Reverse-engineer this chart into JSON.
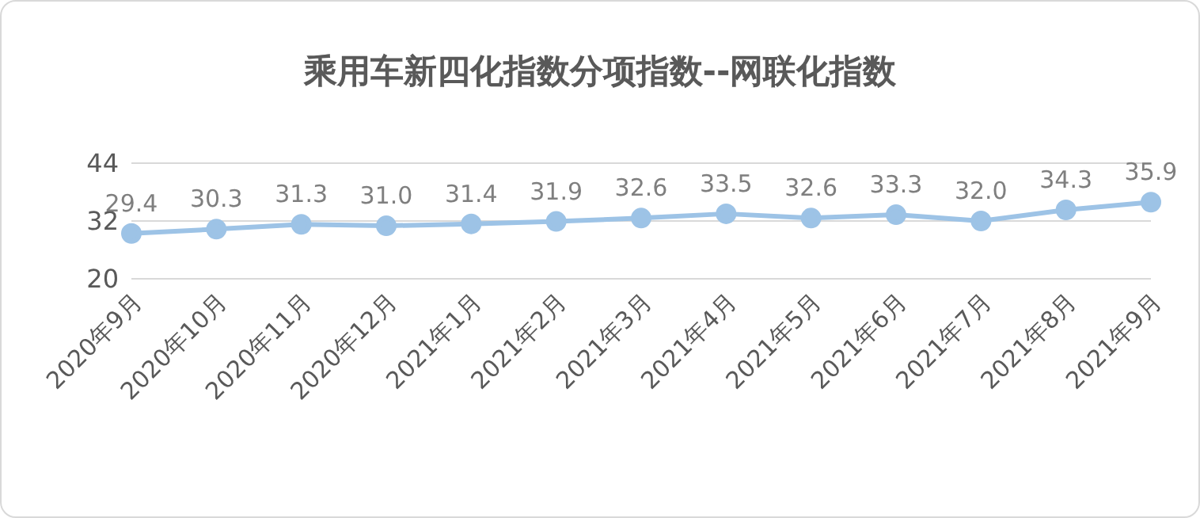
{
  "chart_data": {
    "type": "line",
    "title": "乘用车新四化指数分项指数--网联化指数",
    "categories": [
      "2020年9月",
      "2020年10月",
      "2020年11月",
      "2020年12月",
      "2021年1月",
      "2021年2月",
      "2021年3月",
      "2021年4月",
      "2021年5月",
      "2021年6月",
      "2021年7月",
      "2021年8月",
      "2021年9月"
    ],
    "series": [
      {
        "color": "#9dc3e6",
        "values": [
          29.4,
          30.3,
          31.3,
          31.0,
          31.4,
          31.9,
          32.6,
          33.5,
          32.6,
          33.3,
          32.0,
          34.3,
          35.9
        ],
        "value_labels": [
          "29.4",
          "30.3",
          "31.3",
          "31.0",
          "31.4",
          "31.9",
          "32.6",
          "33.5",
          "32.6",
          "33.3",
          "32.0",
          "34.3",
          "35.9"
        ]
      }
    ],
    "ylim": [
      20,
      44
    ],
    "yticks": [
      20,
      32,
      44
    ],
    "grid": "y",
    "marker": "circle"
  }
}
